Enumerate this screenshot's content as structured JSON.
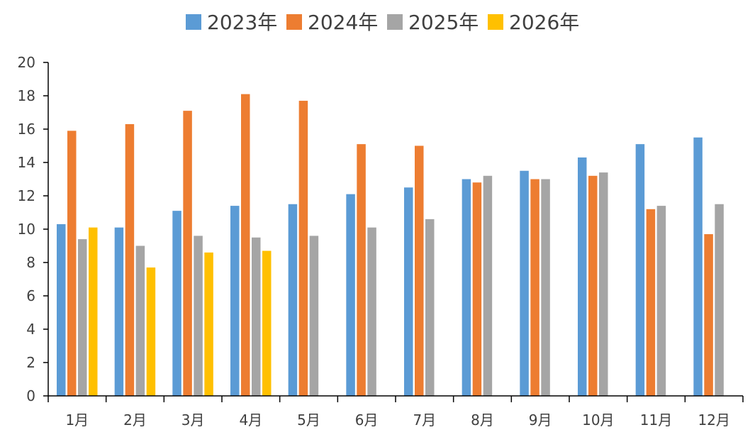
{
  "chart_data": {
    "type": "bar",
    "title": "",
    "xlabel": "",
    "ylabel": "",
    "ylim": [
      0,
      20
    ],
    "yticks": [
      0,
      2,
      4,
      6,
      8,
      10,
      12,
      14,
      16,
      18,
      20
    ],
    "grid": false,
    "legend_position": "top",
    "categories": [
      "1月",
      "2月",
      "3月",
      "4月",
      "5月",
      "6月",
      "7月",
      "8月",
      "9月",
      "10月",
      "11月",
      "12月"
    ],
    "series": [
      {
        "name": "2023年",
        "color": "#5B9BD5",
        "values": [
          10.3,
          10.1,
          11.1,
          11.4,
          11.5,
          12.1,
          12.5,
          13.0,
          13.5,
          14.3,
          15.1,
          15.5
        ]
      },
      {
        "name": "2024年",
        "color": "#ED7D31",
        "values": [
          15.9,
          16.3,
          17.1,
          18.1,
          17.7,
          15.1,
          15.0,
          12.8,
          13.0,
          13.2,
          11.2,
          9.7
        ]
      },
      {
        "name": "2025年",
        "color": "#A5A5A5",
        "values": [
          9.4,
          9.0,
          9.6,
          9.5,
          9.6,
          10.1,
          10.6,
          13.2,
          13.0,
          13.4,
          11.4,
          11.5
        ]
      },
      {
        "name": "2026年",
        "color": "#FFC000",
        "values": [
          10.1,
          7.7,
          8.6,
          8.7,
          null,
          null,
          null,
          null,
          null,
          null,
          null,
          null
        ]
      }
    ]
  }
}
